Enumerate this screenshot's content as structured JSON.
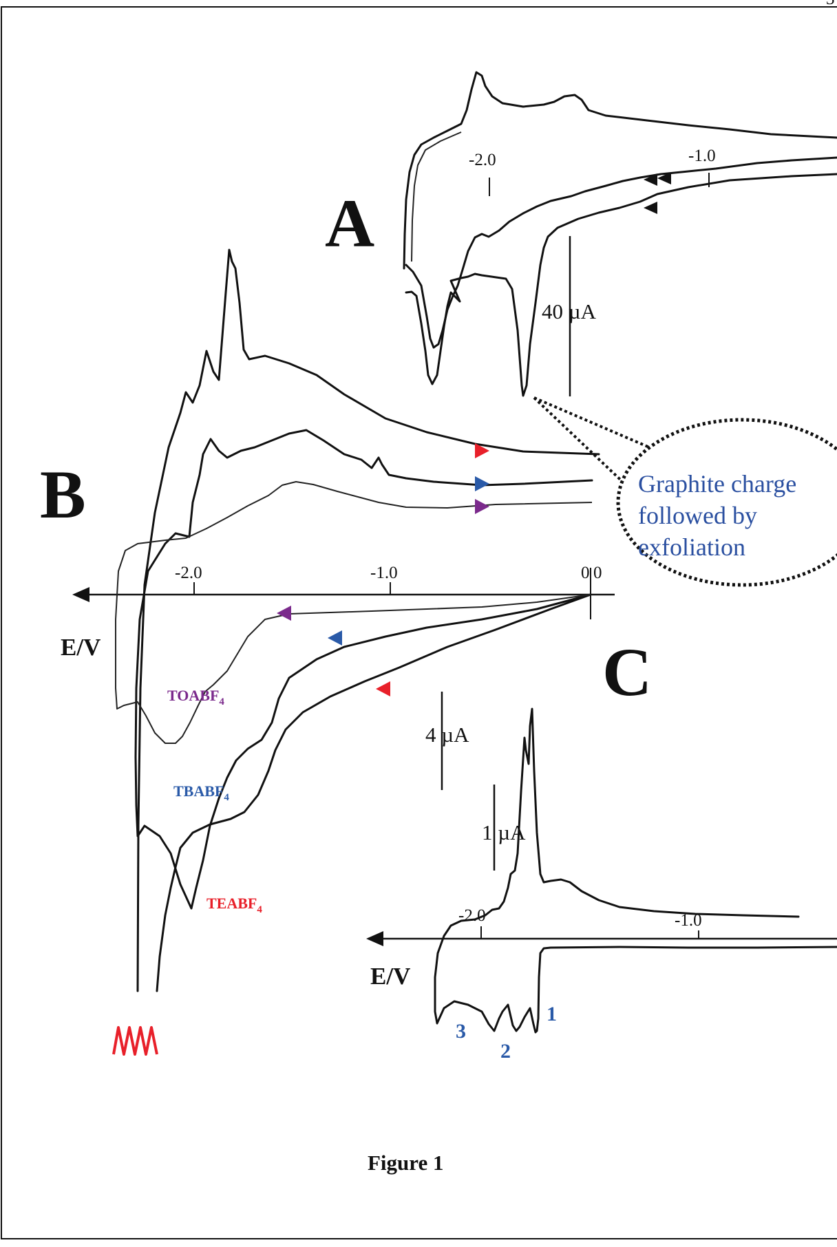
{
  "page_number": "3",
  "figure_caption": "Figure 1",
  "panels": {
    "A": {
      "label": "A",
      "x_ticks": [
        "-2.0",
        "-1.0"
      ],
      "current_scale": "40 µA"
    },
    "B": {
      "label": "B",
      "x_axis_label": "E/V",
      "x_ticks": [
        "-2.0",
        "-1.0",
        "0",
        "0"
      ],
      "electrolytes": [
        {
          "name": "TOABF",
          "sub": "4",
          "color": "#7b2a8c"
        },
        {
          "name": "TBABF",
          "sub": "4",
          "color": "#2a5aa8"
        },
        {
          "name": "TEABF",
          "sub": "4",
          "color": "#e8202a"
        }
      ]
    },
    "C": {
      "label": "C",
      "x_axis_label": "E/V",
      "x_ticks": [
        "-2.0",
        "-1.0"
      ],
      "scales": [
        "4 µA",
        "1 µA"
      ],
      "peaks": [
        "1",
        "2",
        "3"
      ]
    }
  },
  "callout": {
    "lines": [
      "Graphite charge",
      "followed by",
      "exfoliation"
    ],
    "color": "#2a4fa0"
  },
  "colors": {
    "red": "#e8202a",
    "blue": "#2a5aa8",
    "purple": "#7b2a8c",
    "trace": "#111111"
  },
  "chart_data": [
    {
      "type": "line",
      "panel": "A",
      "x_ticks": [
        -2.0,
        -1.0
      ],
      "current_scale": "40 µA",
      "series": [
        {
          "values": [
            [
              -2.4,
              -0.45
            ],
            [
              -2.3,
              -0.9
            ],
            [
              -2.2,
              -0.35
            ],
            [
              -2.1,
              -0.45
            ],
            [
              -1.9,
              -0.3
            ],
            [
              -1.7,
              -0.38
            ],
            [
              -1.5,
              -1.0
            ],
            [
              -1.4,
              -0.28
            ],
            [
              -1.2,
              -0.18
            ],
            [
              -1.0,
              -0.11
            ],
            [
              -0.4,
              -0.08
            ]
          ]
        },
        {
          "values": [
            [
              -2.4,
              0.45
            ],
            [
              -2.25,
              0.52
            ],
            [
              -2.0,
              0.98
            ],
            [
              -1.8,
              0.78
            ],
            [
              -1.6,
              0.65
            ],
            [
              -1.4,
              0.72
            ],
            [
              -1.2,
              0.58
            ],
            [
              -0.6,
              0.5
            ],
            [
              -0.4,
              0.5
            ]
          ]
        }
      ]
    },
    {
      "type": "line",
      "panel": "B",
      "x_axis_label": "E/V",
      "x_ticks": [
        -2.0,
        -1.0,
        0.0
      ],
      "series": [
        {
          "name": "TEABF4",
          "color": "#e8202a",
          "values": [
            [
              0.0,
              0.0
            ],
            [
              -0.6,
              -0.25
            ],
            [
              -1.0,
              -0.55
            ],
            [
              -1.5,
              -1.0
            ],
            [
              -1.8,
              -2.0
            ],
            [
              -2.05,
              -3.2
            ],
            [
              -2.3,
              -8.0
            ],
            [
              -2.1,
              3.0
            ],
            [
              -1.9,
              6.5
            ],
            [
              -1.85,
              7.8
            ],
            [
              -1.4,
              5.2
            ],
            [
              -0.8,
              4.1
            ],
            [
              0.0,
              4.0
            ]
          ]
        },
        {
          "name": "TBABF4",
          "color": "#2a5aa8",
          "values": [
            [
              0.0,
              0.0
            ],
            [
              -0.8,
              -0.2
            ],
            [
              -1.5,
              -0.5
            ],
            [
              -1.9,
              -1.5
            ],
            [
              -2.2,
              -2.8
            ],
            [
              -2.15,
              2.6
            ],
            [
              -1.95,
              3.8
            ],
            [
              -1.7,
              3.6
            ],
            [
              -1.3,
              3.7
            ],
            [
              -1.0,
              3.0
            ],
            [
              -0.6,
              2.8
            ],
            [
              0.0,
              2.8
            ]
          ]
        },
        {
          "name": "TOABF4",
          "color": "#7b2a8c",
          "values": [
            [
              0.0,
              0.0
            ],
            [
              -1.3,
              -0.2
            ],
            [
              -1.7,
              -0.6
            ],
            [
              -2.05,
              -1.5
            ],
            [
              -2.4,
              -1.5
            ],
            [
              -2.2,
              1.0
            ],
            [
              -1.8,
              1.6
            ],
            [
              -1.5,
              3.1
            ],
            [
              -1.0,
              2.5
            ],
            [
              -0.5,
              2.2
            ],
            [
              0.0,
              2.2
            ]
          ]
        }
      ]
    },
    {
      "type": "line",
      "panel": "C",
      "x_axis_label": "E/V",
      "x_ticks": [
        -2.0,
        -1.0
      ],
      "scales": [
        "4 µA",
        "1 µA"
      ],
      "series": [
        {
          "values": [
            [
              -2.4,
              -1.2
            ],
            [
              -2.2,
              -1.25
            ],
            [
              -2.1,
              -1.4
            ],
            [
              -1.95,
              -1.25
            ],
            [
              -1.85,
              -1.3
            ],
            [
              -1.7,
              -0.1
            ],
            [
              -1.0,
              -0.05
            ],
            [
              -0.5,
              -0.04
            ]
          ]
        },
        {
          "values": [
            [
              -2.2,
              0.0
            ],
            [
              -1.95,
              0.3
            ],
            [
              -1.85,
              0.7
            ],
            [
              -1.8,
              4.2
            ],
            [
              -1.7,
              0.6
            ],
            [
              -1.4,
              0.2
            ],
            [
              -0.8,
              0.05
            ]
          ]
        }
      ],
      "annotations": [
        {
          "text": "1",
          "x": -1.65
        },
        {
          "text": "2",
          "x": -1.95
        },
        {
          "text": "3",
          "x": -2.25
        }
      ]
    }
  ]
}
